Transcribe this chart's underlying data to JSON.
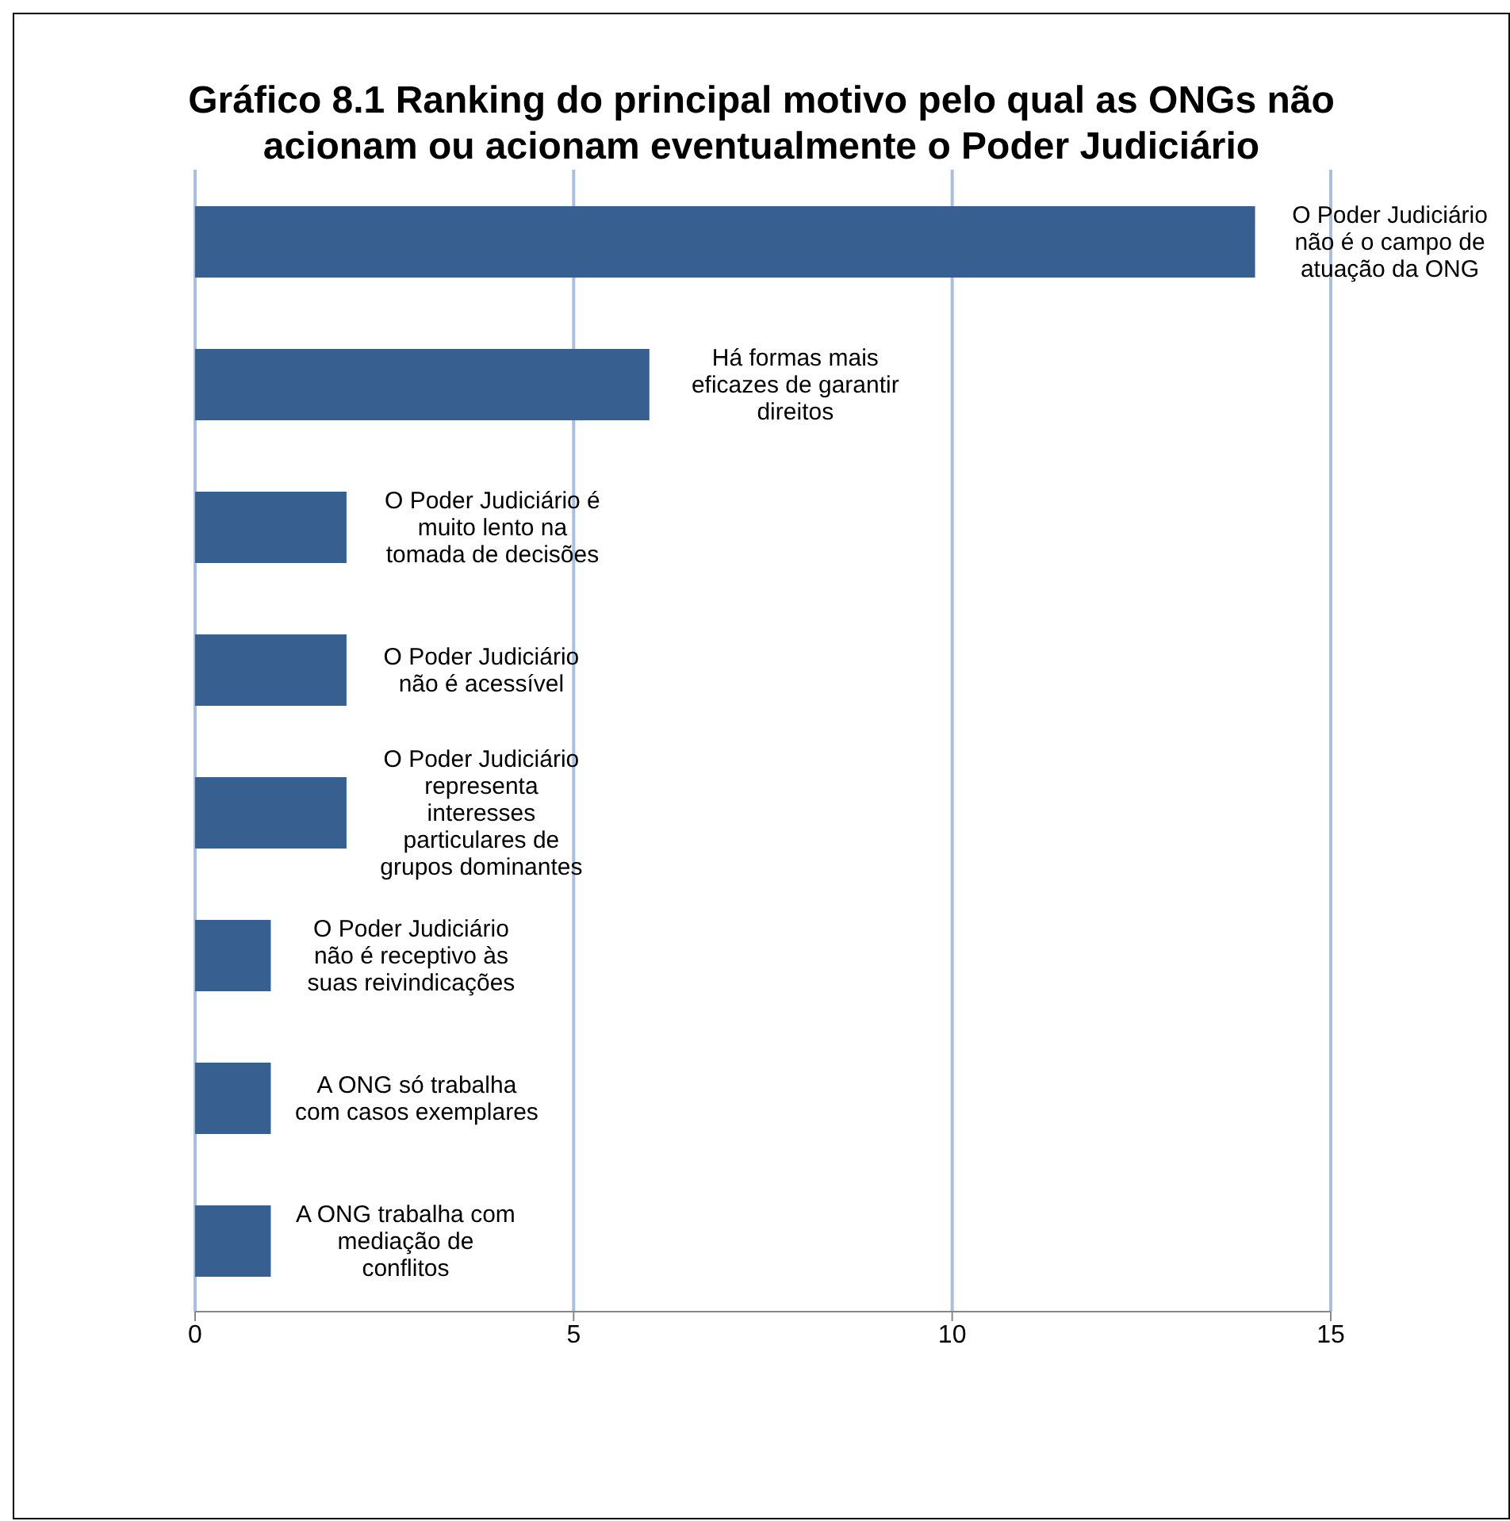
{
  "chart_data": {
    "type": "bar",
    "orientation": "horizontal",
    "title": "Gráfico 8.1 Ranking do principal motivo pelo qual as ONGs não acionam ou acionam eventualmente o Poder Judiciário",
    "categories": [
      "O Poder Judiciário não é o campo de atuação da ONG",
      "Há formas mais eficazes de garantir direitos",
      "O Poder Judiciário é muito lento na tomada de decisões",
      "O Poder Judiciário não é acessível",
      "O Poder Judiciário representa interesses particulares de grupos dominantes",
      "O Poder Judiciário não é receptivo às suas reivindicações",
      "A ONG só trabalha com casos exemplares",
      "A ONG trabalha com mediação de conflitos"
    ],
    "values": [
      14,
      6,
      2,
      2,
      2,
      1,
      1,
      1
    ],
    "color": "#375f8f",
    "xlim": [
      0,
      15
    ],
    "xticks": [
      0,
      5,
      10,
      15
    ],
    "grid": "x",
    "legend": false
  }
}
